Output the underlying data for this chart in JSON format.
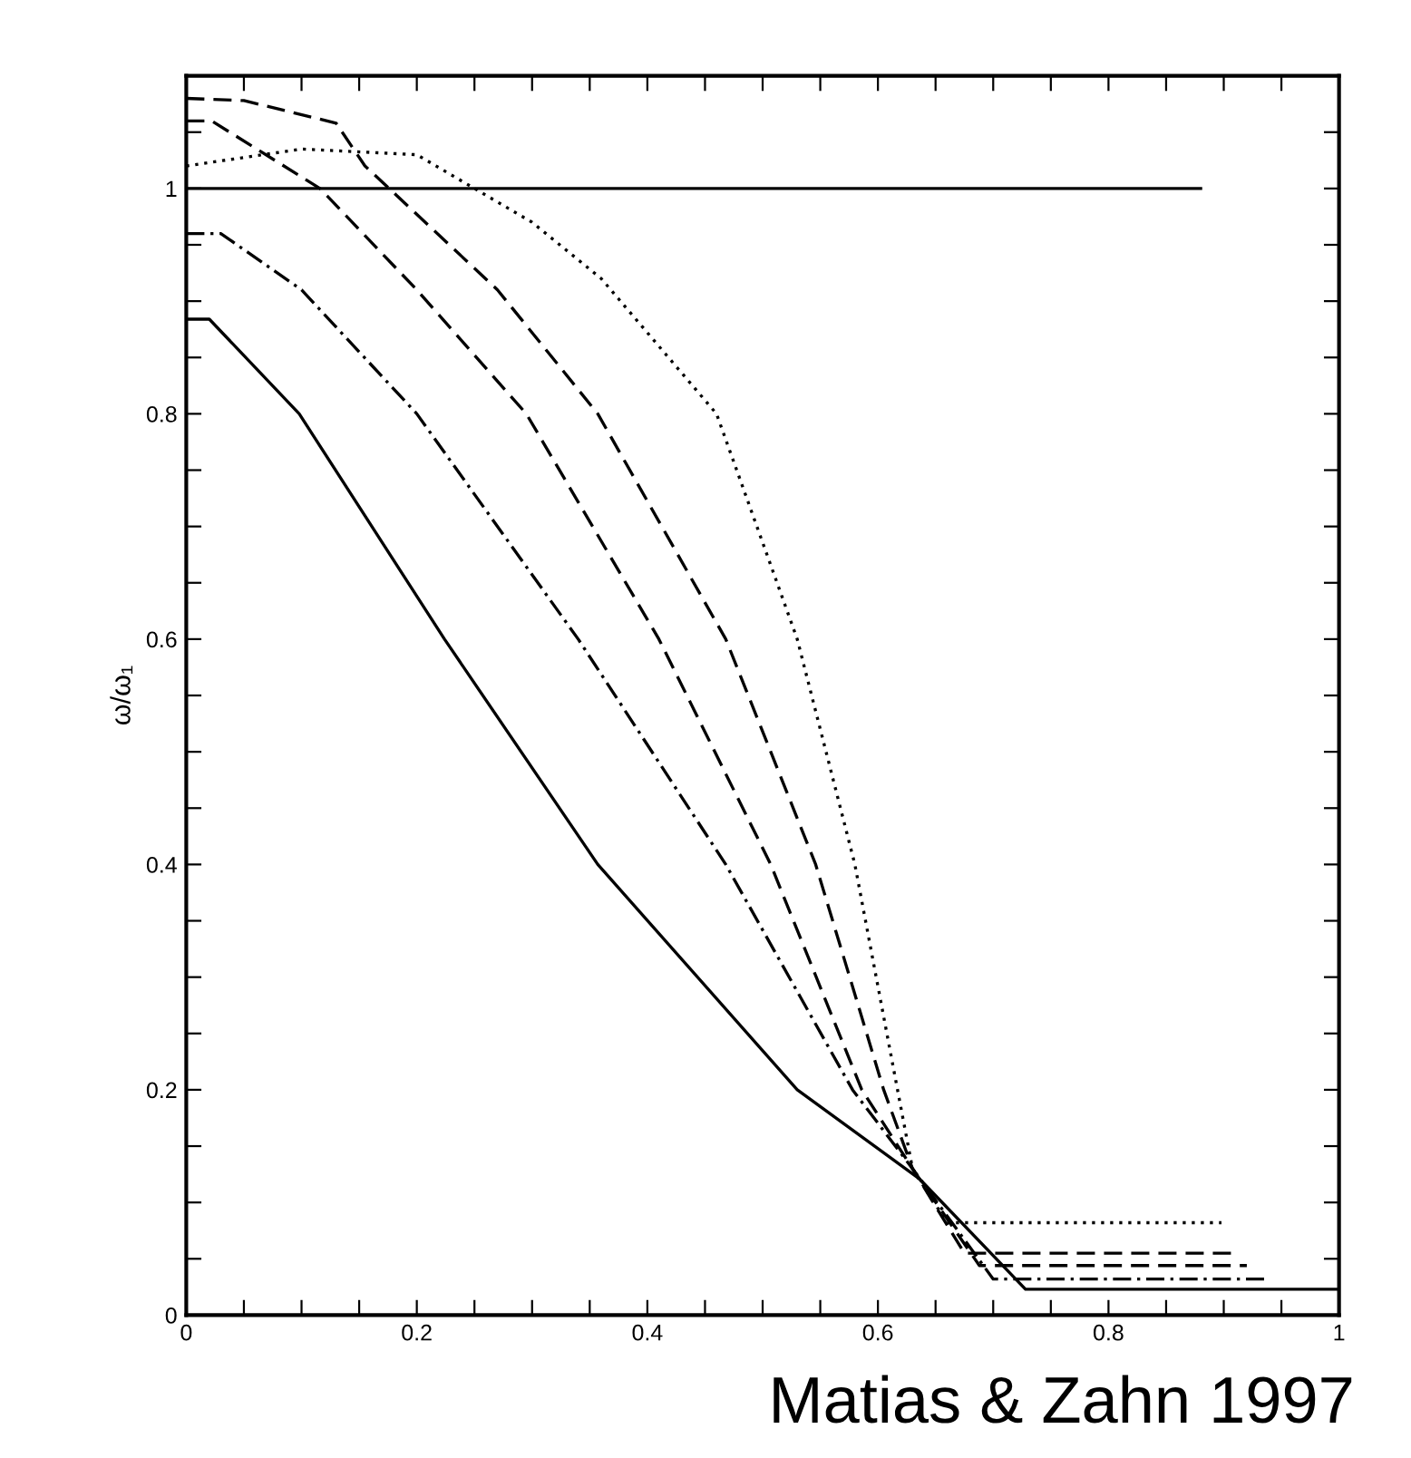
{
  "chart_data": {
    "type": "line",
    "ylabel": "ω/ω₁",
    "annotations": [
      "Matias & Zahn 1997"
    ],
    "xlim": [
      0,
      1
    ],
    "ylim": [
      0,
      1.1
    ],
    "xticks": [
      0,
      {
        "value": 0.05,
        "label": null
      },
      {
        "value": 0.1,
        "label": null
      },
      {
        "value": 0.15,
        "label": null
      },
      0.2,
      {
        "value": 0.25,
        "label": null
      },
      {
        "value": 0.3,
        "label": null
      },
      {
        "value": 0.35,
        "label": null
      },
      0.4,
      {
        "value": 0.45,
        "label": null
      },
      {
        "value": 0.5,
        "label": null
      },
      {
        "value": 0.55,
        "label": null
      },
      0.6,
      {
        "value": 0.65,
        "label": null
      },
      {
        "value": 0.7,
        "label": null
      },
      {
        "value": 0.75,
        "label": null
      },
      0.8,
      {
        "value": 0.85,
        "label": null
      },
      {
        "value": 0.9,
        "label": null
      },
      {
        "value": 0.95,
        "label": null
      },
      1
    ],
    "yticks": [
      0,
      {
        "value": 0.05,
        "label": null
      },
      {
        "value": 0.1,
        "label": null
      },
      {
        "value": 0.15,
        "label": null
      },
      0.2,
      {
        "value": 0.25,
        "label": null
      },
      {
        "value": 0.3,
        "label": null
      },
      {
        "value": 0.35,
        "label": null
      },
      0.4,
      {
        "value": 0.45,
        "label": null
      },
      {
        "value": 0.5,
        "label": null
      },
      {
        "value": 0.55,
        "label": null
      },
      0.6,
      {
        "value": 0.65,
        "label": null
      },
      {
        "value": 0.7,
        "label": null
      },
      {
        "value": 0.75,
        "label": null
      },
      0.8,
      {
        "value": 0.85,
        "label": null
      },
      {
        "value": 0.9,
        "label": null
      },
      {
        "value": 0.95,
        "label": null
      },
      1,
      {
        "value": 1.05,
        "label": null
      }
    ],
    "series": [
      {
        "color": "#000000",
        "line_style": "solid",
        "x": [
          0,
          0.88
        ],
        "values": [
          1,
          1
        ]
      },
      {
        "color": "#000000",
        "line_style": "dotted",
        "x": [
          0,
          0.1,
          0.2,
          0.25,
          0.3,
          0.36,
          0.41,
          0.46,
          0.53,
          0.58,
          0.617,
          0.63,
          0.66,
          0.898
        ],
        "values": [
          1.02,
          1.035,
          1.03,
          1.0,
          0.97,
          0.92,
          0.86,
          0.8,
          0.6,
          0.4,
          0.2,
          0.13,
          0.082,
          0.082
        ]
      },
      {
        "color": "#000000",
        "line_style": "dashed",
        "x": [
          0,
          0.05,
          0.13,
          0.155,
          0.176,
          0.27,
          0.357,
          0.468,
          0.546,
          0.605,
          0.63,
          0.675,
          0.909
        ],
        "values": [
          1.08,
          1.078,
          1.058,
          1.02,
          1.0,
          0.91,
          0.8,
          0.6,
          0.4,
          0.2,
          0.13,
          0.055,
          0.055
        ]
      },
      {
        "color": "#000000",
        "line_style": "dashed",
        "x": [
          0,
          0.022,
          0.116,
          0.2,
          0.295,
          0.41,
          0.507,
          0.586,
          0.63,
          0.688,
          0.92
        ],
        "values": [
          1.06,
          1.06,
          1.0,
          0.91,
          0.8,
          0.6,
          0.4,
          0.2,
          0.13,
          0.044,
          0.044
        ]
      },
      {
        "color": "#000000",
        "line_style": "dashdot",
        "x": [
          0,
          0.03,
          0.1,
          0.2,
          0.34,
          0.468,
          0.578,
          0.63,
          0.7,
          0.935
        ],
        "values": [
          0.96,
          0.96,
          0.91,
          0.8,
          0.6,
          0.4,
          0.2,
          0.13,
          0.032,
          0.032
        ]
      },
      {
        "color": "#000000",
        "line_style": "solid",
        "x": [
          0,
          0.02,
          0.098,
          0.224,
          0.357,
          0.53,
          0.636,
          0.728,
          1.0
        ],
        "values": [
          0.884,
          0.884,
          0.8,
          0.6,
          0.4,
          0.2,
          0.121,
          0.023,
          0.023
        ]
      }
    ]
  }
}
